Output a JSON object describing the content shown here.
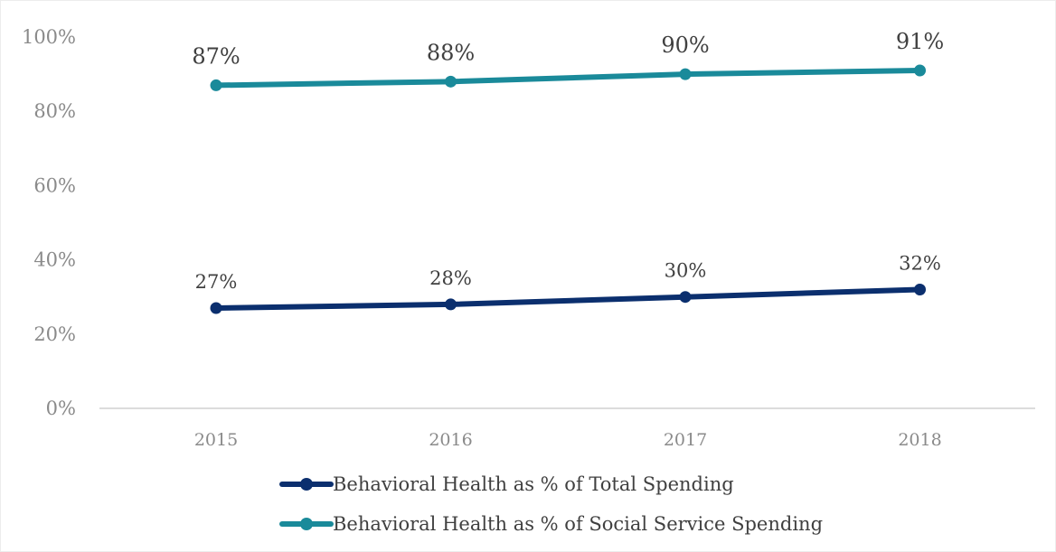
{
  "chart_data": {
    "type": "line",
    "title": "",
    "xlabel": "",
    "ylabel": "",
    "categories": [
      "2015",
      "2016",
      "2017",
      "2018"
    ],
    "ylim": [
      0,
      100
    ],
    "yticks": [
      "0%",
      "20%",
      "40%",
      "60%",
      "80%",
      "100%"
    ],
    "grid": false,
    "legend_position": "bottom",
    "series": [
      {
        "name": "Behavioral Health as % of Total Spending",
        "values": [
          27,
          28,
          30,
          32
        ],
        "labels": [
          "27%",
          "28%",
          "30%",
          "32%"
        ],
        "color": "#0b2f6e"
      },
      {
        "name": "Behavioral Health as % of Social Service Spending",
        "values": [
          87,
          88,
          90,
          91
        ],
        "labels": [
          "87%",
          "88%",
          "90%",
          "91%"
        ],
        "color": "#1a8a9a"
      }
    ]
  }
}
